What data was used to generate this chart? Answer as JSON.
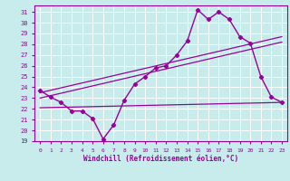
{
  "xlabel": "Windchill (Refroidissement éolien,°C)",
  "background_color": "#c8ecec",
  "line_color": "#990099",
  "xlim": [
    -0.5,
    23.5
  ],
  "ylim": [
    19,
    31.6
  ],
  "xticks": [
    0,
    1,
    2,
    3,
    4,
    5,
    6,
    7,
    8,
    9,
    10,
    11,
    12,
    13,
    14,
    15,
    16,
    17,
    18,
    19,
    20,
    21,
    22,
    23
  ],
  "yticks": [
    19,
    20,
    21,
    22,
    23,
    24,
    25,
    26,
    27,
    28,
    29,
    30,
    31
  ],
  "grid_color": "#ffffff",
  "series": {
    "windchill": {
      "x": [
        0,
        1,
        2,
        3,
        4,
        5,
        6,
        7,
        8,
        9,
        10,
        11,
        12,
        13,
        14,
        15,
        16,
        17,
        18,
        19,
        20,
        21,
        22,
        23
      ],
      "y": [
        23.7,
        23.1,
        22.6,
        21.8,
        21.8,
        21.1,
        19.2,
        20.5,
        22.8,
        24.3,
        25.0,
        25.8,
        26.0,
        27.0,
        28.3,
        31.2,
        30.3,
        31.0,
        30.3,
        28.7,
        28.1,
        25.0,
        23.1,
        22.6
      ]
    },
    "diag_line1": {
      "x": [
        0,
        23
      ],
      "y": [
        23.5,
        28.7
      ]
    },
    "diag_line2": {
      "x": [
        0,
        23
      ],
      "y": [
        23.0,
        28.2
      ]
    },
    "flat_line": {
      "x": [
        0,
        23
      ],
      "y": [
        22.1,
        22.6
      ]
    }
  }
}
